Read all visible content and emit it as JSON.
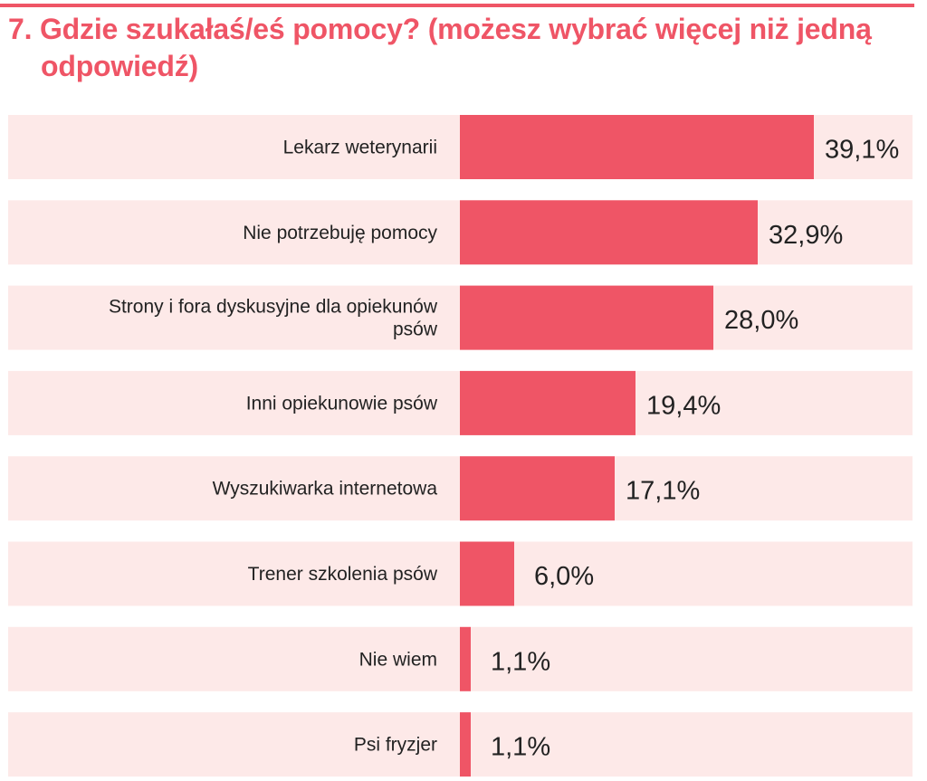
{
  "chart_data": {
    "type": "bar",
    "orientation": "horizontal",
    "title": "7. Gdzie szukałaś/eś pomocy? (możesz wybrać więcej niż jedną odpowiedź)",
    "categories": [
      "Lekarz weterynarii",
      "Nie potrzebuję pomocy",
      "Strony i fora dyskusyjne dla opiekunów psów",
      "Inni opiekunowie psów",
      "Wyszukiwarka internetowa",
      "Trener szkolenia psów",
      "Nie wiem",
      "Psi fryzjer"
    ],
    "values": [
      39.1,
      32.9,
      28.0,
      19.4,
      17.1,
      6.0,
      1.1,
      1.1
    ],
    "value_labels": [
      "39,1%",
      "32,9%",
      "28,0%",
      "19,4%",
      "17,1%",
      "6,0%",
      "1,1%",
      "1,1%"
    ],
    "xlim": [
      0,
      50
    ],
    "grid": false,
    "legend": "none",
    "colors": {
      "bar": "#ef5566",
      "row_background": "#fde9e8",
      "title": "#ef5566",
      "text": "#222222"
    }
  }
}
